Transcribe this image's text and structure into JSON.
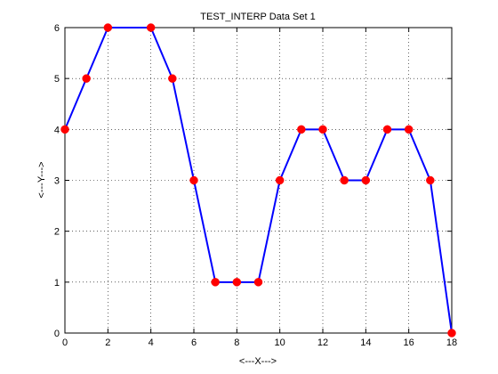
{
  "chart_data": {
    "type": "line",
    "title": "TEST_INTERP Data Set 1",
    "xlabel": "<---X--->",
    "ylabel": "<---Y--->",
    "xlim": [
      0,
      18
    ],
    "ylim": [
      0,
      6
    ],
    "xticks": [
      0,
      2,
      4,
      6,
      8,
      10,
      12,
      14,
      16,
      18
    ],
    "yticks": [
      0,
      1,
      2,
      3,
      4,
      5,
      6
    ],
    "grid": true,
    "grid_style": "dotted",
    "line_color": "#0000ff",
    "marker_color": "#ff0000",
    "marker": "circle",
    "series": [
      {
        "x": [
          0,
          1,
          2,
          4,
          5,
          6,
          7,
          8,
          9,
          10,
          11,
          12,
          13,
          14,
          15,
          16,
          17,
          18
        ],
        "y": [
          4,
          5,
          6,
          6,
          5,
          3,
          1,
          1,
          1,
          3,
          4,
          4,
          3,
          3,
          4,
          4,
          3,
          0
        ]
      }
    ]
  }
}
